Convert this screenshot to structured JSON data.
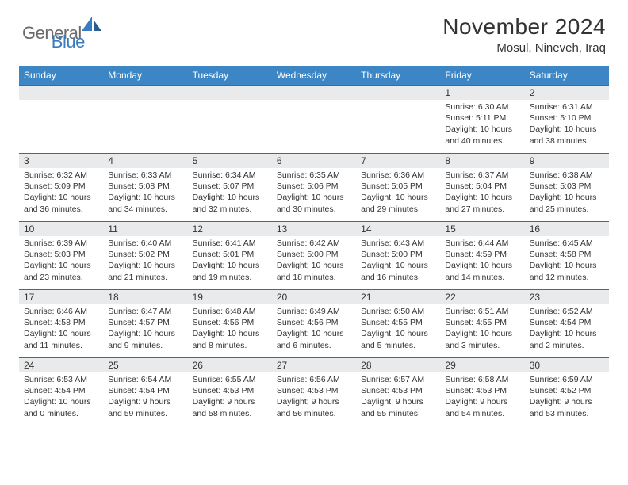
{
  "logo": {
    "part1": "General",
    "part2": "Blue"
  },
  "title": "November 2024",
  "subtitle": "Mosul, Nineveh, Iraq",
  "colors": {
    "header_bg": "#3d86c6",
    "daynum_bg": "#e9eaeb",
    "rule": "#3d6a9a",
    "logo_gray": "#6a6a6a",
    "logo_blue": "#3a7cc0"
  },
  "dayNames": [
    "Sunday",
    "Monday",
    "Tuesday",
    "Wednesday",
    "Thursday",
    "Friday",
    "Saturday"
  ],
  "weeks": [
    [
      {
        "n": "",
        "l1": "",
        "l2": "",
        "l3": "",
        "l4": ""
      },
      {
        "n": "",
        "l1": "",
        "l2": "",
        "l3": "",
        "l4": ""
      },
      {
        "n": "",
        "l1": "",
        "l2": "",
        "l3": "",
        "l4": ""
      },
      {
        "n": "",
        "l1": "",
        "l2": "",
        "l3": "",
        "l4": ""
      },
      {
        "n": "",
        "l1": "",
        "l2": "",
        "l3": "",
        "l4": ""
      },
      {
        "n": "1",
        "l1": "Sunrise: 6:30 AM",
        "l2": "Sunset: 5:11 PM",
        "l3": "Daylight: 10 hours",
        "l4": "and 40 minutes."
      },
      {
        "n": "2",
        "l1": "Sunrise: 6:31 AM",
        "l2": "Sunset: 5:10 PM",
        "l3": "Daylight: 10 hours",
        "l4": "and 38 minutes."
      }
    ],
    [
      {
        "n": "3",
        "l1": "Sunrise: 6:32 AM",
        "l2": "Sunset: 5:09 PM",
        "l3": "Daylight: 10 hours",
        "l4": "and 36 minutes."
      },
      {
        "n": "4",
        "l1": "Sunrise: 6:33 AM",
        "l2": "Sunset: 5:08 PM",
        "l3": "Daylight: 10 hours",
        "l4": "and 34 minutes."
      },
      {
        "n": "5",
        "l1": "Sunrise: 6:34 AM",
        "l2": "Sunset: 5:07 PM",
        "l3": "Daylight: 10 hours",
        "l4": "and 32 minutes."
      },
      {
        "n": "6",
        "l1": "Sunrise: 6:35 AM",
        "l2": "Sunset: 5:06 PM",
        "l3": "Daylight: 10 hours",
        "l4": "and 30 minutes."
      },
      {
        "n": "7",
        "l1": "Sunrise: 6:36 AM",
        "l2": "Sunset: 5:05 PM",
        "l3": "Daylight: 10 hours",
        "l4": "and 29 minutes."
      },
      {
        "n": "8",
        "l1": "Sunrise: 6:37 AM",
        "l2": "Sunset: 5:04 PM",
        "l3": "Daylight: 10 hours",
        "l4": "and 27 minutes."
      },
      {
        "n": "9",
        "l1": "Sunrise: 6:38 AM",
        "l2": "Sunset: 5:03 PM",
        "l3": "Daylight: 10 hours",
        "l4": "and 25 minutes."
      }
    ],
    [
      {
        "n": "10",
        "l1": "Sunrise: 6:39 AM",
        "l2": "Sunset: 5:03 PM",
        "l3": "Daylight: 10 hours",
        "l4": "and 23 minutes."
      },
      {
        "n": "11",
        "l1": "Sunrise: 6:40 AM",
        "l2": "Sunset: 5:02 PM",
        "l3": "Daylight: 10 hours",
        "l4": "and 21 minutes."
      },
      {
        "n": "12",
        "l1": "Sunrise: 6:41 AM",
        "l2": "Sunset: 5:01 PM",
        "l3": "Daylight: 10 hours",
        "l4": "and 19 minutes."
      },
      {
        "n": "13",
        "l1": "Sunrise: 6:42 AM",
        "l2": "Sunset: 5:00 PM",
        "l3": "Daylight: 10 hours",
        "l4": "and 18 minutes."
      },
      {
        "n": "14",
        "l1": "Sunrise: 6:43 AM",
        "l2": "Sunset: 5:00 PM",
        "l3": "Daylight: 10 hours",
        "l4": "and 16 minutes."
      },
      {
        "n": "15",
        "l1": "Sunrise: 6:44 AM",
        "l2": "Sunset: 4:59 PM",
        "l3": "Daylight: 10 hours",
        "l4": "and 14 minutes."
      },
      {
        "n": "16",
        "l1": "Sunrise: 6:45 AM",
        "l2": "Sunset: 4:58 PM",
        "l3": "Daylight: 10 hours",
        "l4": "and 12 minutes."
      }
    ],
    [
      {
        "n": "17",
        "l1": "Sunrise: 6:46 AM",
        "l2": "Sunset: 4:58 PM",
        "l3": "Daylight: 10 hours",
        "l4": "and 11 minutes."
      },
      {
        "n": "18",
        "l1": "Sunrise: 6:47 AM",
        "l2": "Sunset: 4:57 PM",
        "l3": "Daylight: 10 hours",
        "l4": "and 9 minutes."
      },
      {
        "n": "19",
        "l1": "Sunrise: 6:48 AM",
        "l2": "Sunset: 4:56 PM",
        "l3": "Daylight: 10 hours",
        "l4": "and 8 minutes."
      },
      {
        "n": "20",
        "l1": "Sunrise: 6:49 AM",
        "l2": "Sunset: 4:56 PM",
        "l3": "Daylight: 10 hours",
        "l4": "and 6 minutes."
      },
      {
        "n": "21",
        "l1": "Sunrise: 6:50 AM",
        "l2": "Sunset: 4:55 PM",
        "l3": "Daylight: 10 hours",
        "l4": "and 5 minutes."
      },
      {
        "n": "22",
        "l1": "Sunrise: 6:51 AM",
        "l2": "Sunset: 4:55 PM",
        "l3": "Daylight: 10 hours",
        "l4": "and 3 minutes."
      },
      {
        "n": "23",
        "l1": "Sunrise: 6:52 AM",
        "l2": "Sunset: 4:54 PM",
        "l3": "Daylight: 10 hours",
        "l4": "and 2 minutes."
      }
    ],
    [
      {
        "n": "24",
        "l1": "Sunrise: 6:53 AM",
        "l2": "Sunset: 4:54 PM",
        "l3": "Daylight: 10 hours",
        "l4": "and 0 minutes."
      },
      {
        "n": "25",
        "l1": "Sunrise: 6:54 AM",
        "l2": "Sunset: 4:54 PM",
        "l3": "Daylight: 9 hours",
        "l4": "and 59 minutes."
      },
      {
        "n": "26",
        "l1": "Sunrise: 6:55 AM",
        "l2": "Sunset: 4:53 PM",
        "l3": "Daylight: 9 hours",
        "l4": "and 58 minutes."
      },
      {
        "n": "27",
        "l1": "Sunrise: 6:56 AM",
        "l2": "Sunset: 4:53 PM",
        "l3": "Daylight: 9 hours",
        "l4": "and 56 minutes."
      },
      {
        "n": "28",
        "l1": "Sunrise: 6:57 AM",
        "l2": "Sunset: 4:53 PM",
        "l3": "Daylight: 9 hours",
        "l4": "and 55 minutes."
      },
      {
        "n": "29",
        "l1": "Sunrise: 6:58 AM",
        "l2": "Sunset: 4:53 PM",
        "l3": "Daylight: 9 hours",
        "l4": "and 54 minutes."
      },
      {
        "n": "30",
        "l1": "Sunrise: 6:59 AM",
        "l2": "Sunset: 4:52 PM",
        "l3": "Daylight: 9 hours",
        "l4": "and 53 minutes."
      }
    ]
  ]
}
